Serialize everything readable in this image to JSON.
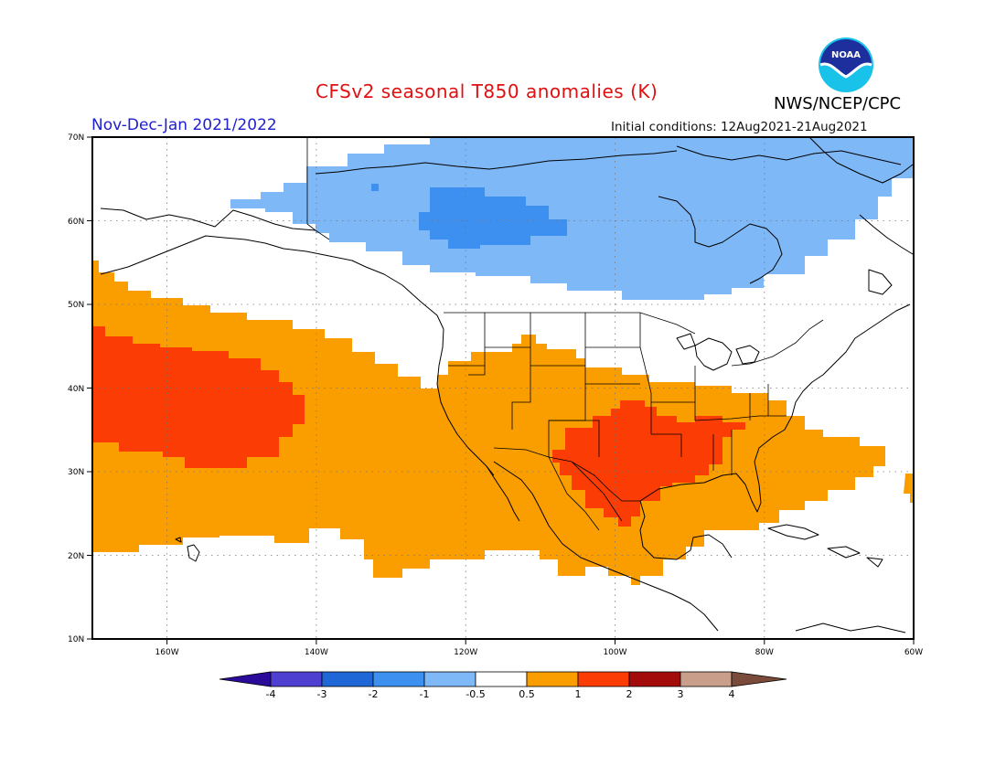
{
  "header": {
    "title": "CFSv2 seasonal T850 anomalies (K)",
    "season": "Nov-Dec-Jan 2021/2022",
    "initial_conditions": "Initial conditions: 12Aug2021-21Aug2021",
    "agency": "NWS/NCEP/CPC",
    "logo_text": "NOAA"
  },
  "map": {
    "projection": "lat-lon",
    "lon_range": [
      -170,
      -60
    ],
    "lat_range": [
      10,
      70
    ],
    "lat_labels": [
      "70N",
      "60N",
      "50N",
      "40N",
      "30N",
      "20N",
      "10N"
    ],
    "lon_labels": [
      "160W",
      "140W",
      "120W",
      "100W",
      "80W",
      "60W"
    ],
    "grid": "dotted"
  },
  "colorbar": {
    "labels": [
      "-4",
      "-3",
      "-2",
      "-1",
      "-0.5",
      "0.5",
      "1",
      "2",
      "3",
      "4"
    ],
    "colors": [
      "#2a0b9a",
      "#4f3fd0",
      "#1f66d6",
      "#3d8ff0",
      "#7fb8f6",
      "#ffffff",
      "#fa9e00",
      "#fb3c04",
      "#a30a0a",
      "#c99f8c",
      "#7a4a3a"
    ]
  }
}
